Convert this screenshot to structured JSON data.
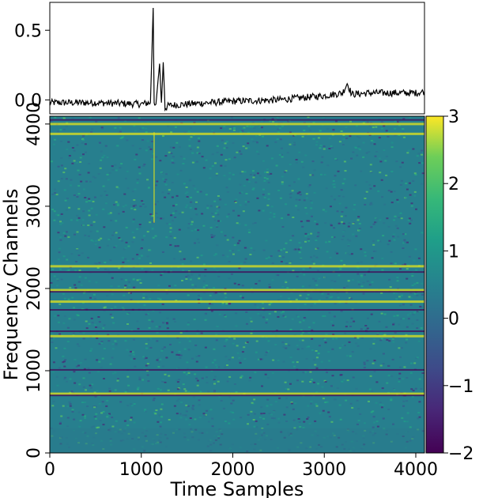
{
  "chart_data": [
    {
      "type": "line",
      "panel": "top",
      "description": "frequency-averaged time series",
      "x": [
        0,
        500,
        1000,
        1100,
        1130,
        1140,
        1160,
        1200,
        1220,
        1240,
        1260,
        1300,
        1500,
        2000,
        2500,
        3000,
        3200,
        3250,
        3300,
        3500,
        4000,
        4095
      ],
      "y": [
        -0.02,
        -0.02,
        -0.03,
        -0.02,
        0.66,
        -0.03,
        -0.03,
        0.26,
        -0.02,
        0.27,
        -0.06,
        -0.04,
        -0.03,
        -0.01,
        0.0,
        0.03,
        0.05,
        0.12,
        0.04,
        0.05,
        0.05,
        0.06
      ],
      "color": "#000000",
      "xlim": [
        0,
        4095
      ],
      "ylim": [
        -0.1,
        0.7
      ],
      "yticks": [
        "0.0",
        "0.5"
      ]
    },
    {
      "type": "heatmap",
      "panel": "bottom",
      "xlabel": "Time Samples",
      "ylabel": "Frequency Channels",
      "xlim": [
        0,
        4095
      ],
      "ylim": [
        0,
        4095
      ],
      "xticks": [
        "0",
        "1000",
        "2000",
        "3000",
        "4000"
      ],
      "yticks": [
        "0",
        "1000",
        "2000",
        "3000",
        "4000"
      ],
      "colormap": "viridis",
      "colorbar": {
        "vmin": -2,
        "vmax": 3,
        "ticks": [
          "3",
          "2",
          "1",
          "0",
          "−1",
          "−2"
        ]
      },
      "bright_bands_channels": [
        4000,
        3880,
        2270,
        1420,
        1840,
        1980,
        720
      ],
      "dark_bands_channels": [
        4050,
        2200,
        1480,
        1960,
        1740,
        1010,
        700
      ],
      "vertical_burst_time": 1140
    }
  ]
}
